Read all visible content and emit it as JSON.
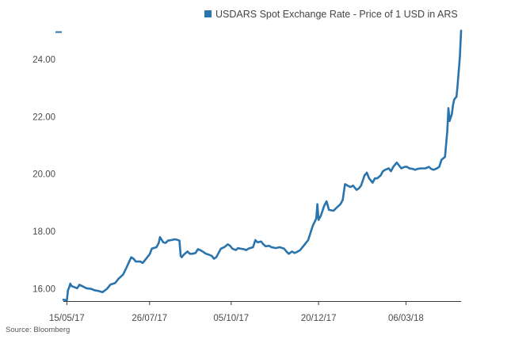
{
  "source_note": "Source: Bloomberg",
  "colors": {
    "series": "#2a74ad",
    "axis": "#3a3a3a",
    "text": "#4a4a4a"
  },
  "chart_data": {
    "type": "line",
    "title": "",
    "xlabel": "",
    "ylabel": "",
    "ylim": [
      15.55,
      25.0
    ],
    "grid": false,
    "legend_position": "top-right",
    "y_ticks": [
      "16.00",
      "18.00",
      "20.00",
      "22.00",
      "24.00"
    ],
    "x_ticks": [
      "15/05/17",
      "26/07/17",
      "05/10/17",
      "20/12/17",
      "06/03/18"
    ],
    "series": [
      {
        "name": "USDARS Spot Exchange Rate - Price of 1 USD in ARS",
        "color": "#2a74ad",
        "points": [
          [
            "2017-05-12",
            15.62
          ],
          [
            "2017-05-15",
            15.6
          ],
          [
            "2017-05-16",
            15.95
          ],
          [
            "2017-05-17",
            16.05
          ],
          [
            "2017-05-18",
            16.18
          ],
          [
            "2017-05-19",
            16.1
          ],
          [
            "2017-05-22",
            16.05
          ],
          [
            "2017-05-24",
            16.02
          ],
          [
            "2017-05-26",
            16.14
          ],
          [
            "2017-05-29",
            16.08
          ],
          [
            "2017-06-01",
            16.02
          ],
          [
            "2017-06-05",
            16.0
          ],
          [
            "2017-06-08",
            15.95
          ],
          [
            "2017-06-12",
            15.92
          ],
          [
            "2017-06-15",
            15.88
          ],
          [
            "2017-06-19",
            16.0
          ],
          [
            "2017-06-22",
            16.15
          ],
          [
            "2017-06-26",
            16.2
          ],
          [
            "2017-06-29",
            16.35
          ],
          [
            "2017-07-03",
            16.5
          ],
          [
            "2017-07-06",
            16.75
          ],
          [
            "2017-07-10",
            17.1
          ],
          [
            "2017-07-12",
            17.05
          ],
          [
            "2017-07-14",
            16.95
          ],
          [
            "2017-07-18",
            16.95
          ],
          [
            "2017-07-20",
            16.9
          ],
          [
            "2017-07-24",
            17.1
          ],
          [
            "2017-07-26",
            17.2
          ],
          [
            "2017-07-28",
            17.4
          ],
          [
            "2017-08-01",
            17.45
          ],
          [
            "2017-08-03",
            17.6
          ],
          [
            "2017-08-04",
            17.8
          ],
          [
            "2017-08-07",
            17.62
          ],
          [
            "2017-08-09",
            17.6
          ],
          [
            "2017-08-11",
            17.68
          ],
          [
            "2017-08-14",
            17.7
          ],
          [
            "2017-08-16",
            17.72
          ],
          [
            "2017-08-18",
            17.72
          ],
          [
            "2017-08-21",
            17.68
          ],
          [
            "2017-08-22",
            17.15
          ],
          [
            "2017-08-23",
            17.1
          ],
          [
            "2017-08-25",
            17.2
          ],
          [
            "2017-08-28",
            17.3
          ],
          [
            "2017-08-30",
            17.22
          ],
          [
            "2017-09-01",
            17.22
          ],
          [
            "2017-09-04",
            17.25
          ],
          [
            "2017-09-06",
            17.38
          ],
          [
            "2017-09-08",
            17.35
          ],
          [
            "2017-09-11",
            17.28
          ],
          [
            "2017-09-13",
            17.22
          ],
          [
            "2017-09-15",
            17.2
          ],
          [
            "2017-09-18",
            17.15
          ],
          [
            "2017-09-20",
            17.05
          ],
          [
            "2017-09-22",
            17.1
          ],
          [
            "2017-09-26",
            17.4
          ],
          [
            "2017-09-29",
            17.45
          ],
          [
            "2017-10-02",
            17.55
          ],
          [
            "2017-10-04",
            17.5
          ],
          [
            "2017-10-06",
            17.4
          ],
          [
            "2017-10-09",
            17.35
          ],
          [
            "2017-10-11",
            17.42
          ],
          [
            "2017-10-13",
            17.4
          ],
          [
            "2017-10-16",
            17.38
          ],
          [
            "2017-10-18",
            17.35
          ],
          [
            "2017-10-20",
            17.4
          ],
          [
            "2017-10-24",
            17.45
          ],
          [
            "2017-10-26",
            17.7
          ],
          [
            "2017-10-28",
            17.62
          ],
          [
            "2017-10-31",
            17.65
          ],
          [
            "2017-11-02",
            17.55
          ],
          [
            "2017-11-04",
            17.48
          ],
          [
            "2017-11-07",
            17.5
          ],
          [
            "2017-11-09",
            17.45
          ],
          [
            "2017-11-13",
            17.42
          ],
          [
            "2017-11-16",
            17.45
          ],
          [
            "2017-11-20",
            17.4
          ],
          [
            "2017-11-22",
            17.3
          ],
          [
            "2017-11-24",
            17.22
          ],
          [
            "2017-11-27",
            17.3
          ],
          [
            "2017-11-29",
            17.25
          ],
          [
            "2017-12-01",
            17.28
          ],
          [
            "2017-12-04",
            17.35
          ],
          [
            "2017-12-06",
            17.45
          ],
          [
            "2017-12-08",
            17.55
          ],
          [
            "2017-12-11",
            17.7
          ],
          [
            "2017-12-13",
            17.95
          ],
          [
            "2017-12-15",
            18.2
          ],
          [
            "2017-12-18",
            18.45
          ],
          [
            "2017-12-19",
            18.95
          ],
          [
            "2017-12-20",
            18.4
          ],
          [
            "2017-12-22",
            18.55
          ],
          [
            "2017-12-25",
            18.9
          ],
          [
            "2017-12-27",
            19.05
          ],
          [
            "2017-12-29",
            18.75
          ],
          [
            "2018-01-02",
            18.72
          ],
          [
            "2018-01-04",
            18.8
          ],
          [
            "2018-01-08",
            18.95
          ],
          [
            "2018-01-10",
            19.1
          ],
          [
            "2018-01-12",
            19.65
          ],
          [
            "2018-01-15",
            19.58
          ],
          [
            "2018-01-17",
            19.55
          ],
          [
            "2018-01-19",
            19.6
          ],
          [
            "2018-01-22",
            19.45
          ],
          [
            "2018-01-24",
            19.5
          ],
          [
            "2018-01-26",
            19.6
          ],
          [
            "2018-01-29",
            19.95
          ],
          [
            "2018-01-31",
            20.05
          ],
          [
            "2018-02-02",
            19.85
          ],
          [
            "2018-02-05",
            19.7
          ],
          [
            "2018-02-07",
            19.85
          ],
          [
            "2018-02-09",
            19.85
          ],
          [
            "2018-02-12",
            19.95
          ],
          [
            "2018-02-14",
            20.1
          ],
          [
            "2018-02-16",
            20.15
          ],
          [
            "2018-02-19",
            20.2
          ],
          [
            "2018-02-21",
            20.1
          ],
          [
            "2018-02-23",
            20.25
          ],
          [
            "2018-02-26",
            20.4
          ],
          [
            "2018-02-28",
            20.3
          ],
          [
            "2018-03-02",
            20.2
          ],
          [
            "2018-03-05",
            20.25
          ],
          [
            "2018-03-07",
            20.25
          ],
          [
            "2018-03-09",
            20.2
          ],
          [
            "2018-03-12",
            20.18
          ],
          [
            "2018-03-14",
            20.15
          ],
          [
            "2018-03-16",
            20.18
          ],
          [
            "2018-03-19",
            20.2
          ],
          [
            "2018-03-21",
            20.2
          ],
          [
            "2018-03-23",
            20.2
          ],
          [
            "2018-03-26",
            20.25
          ],
          [
            "2018-03-28",
            20.18
          ],
          [
            "2018-03-30",
            20.15
          ],
          [
            "2018-04-02",
            20.2
          ],
          [
            "2018-04-04",
            20.25
          ],
          [
            "2018-04-06",
            20.5
          ],
          [
            "2018-04-09",
            20.6
          ],
          [
            "2018-04-11",
            21.5
          ],
          [
            "2018-04-12",
            22.3
          ],
          [
            "2018-04-13",
            21.85
          ],
          [
            "2018-04-15",
            22.1
          ],
          [
            "2018-04-16",
            22.4
          ],
          [
            "2018-04-17",
            22.6
          ],
          [
            "2018-04-19",
            22.7
          ],
          [
            "2018-04-20",
            23.1
          ],
          [
            "2018-04-22",
            24.1
          ],
          [
            "2018-04-23",
            25.0
          ]
        ]
      }
    ]
  }
}
